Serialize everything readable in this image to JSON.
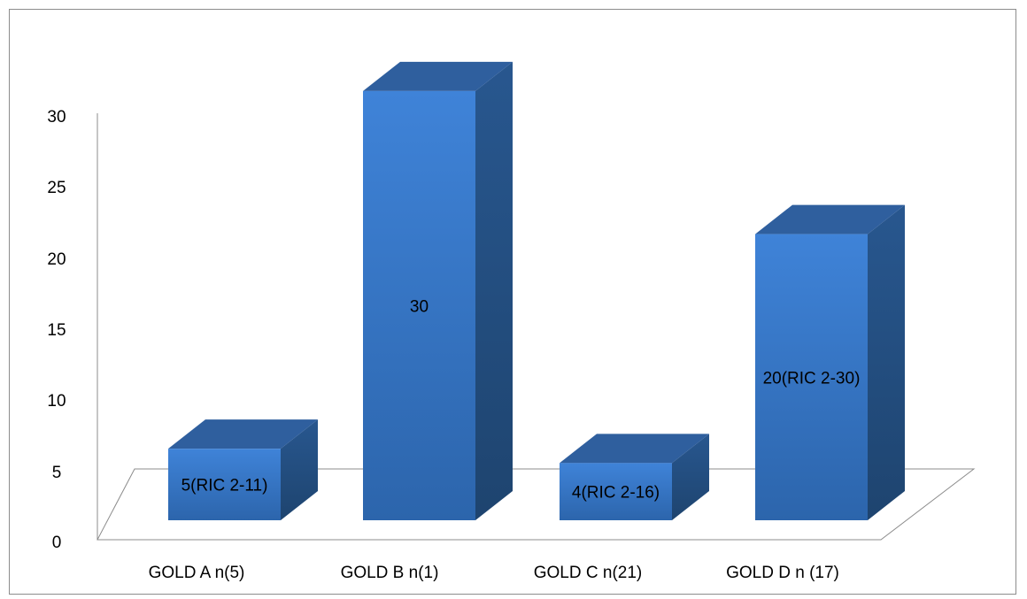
{
  "chart_data": {
    "type": "bar",
    "title": "",
    "xlabel": "",
    "ylabel": "",
    "ylim": [
      0,
      30
    ],
    "yticks": [
      "0",
      "5",
      "10",
      "15",
      "20",
      "25",
      "30"
    ],
    "categories": [
      "GOLD A n(5)",
      "GOLD B n(1)",
      "GOLD C n(21)",
      "GOLD D n (17)"
    ],
    "values": [
      5,
      30,
      4,
      20
    ],
    "data_labels": [
      "5(RIC 2-11)",
      "30",
      "4(RIC 2-16)",
      "20(RIC 2-30)"
    ],
    "grid": false,
    "legend": "none",
    "style": "3d-column",
    "colors": {
      "front": "#3b7dd1",
      "front_dark": "#2d66ad",
      "side": "#244f86",
      "top": "#2f5f9e",
      "floor": "#8c8c8c",
      "text": "#000000"
    }
  }
}
